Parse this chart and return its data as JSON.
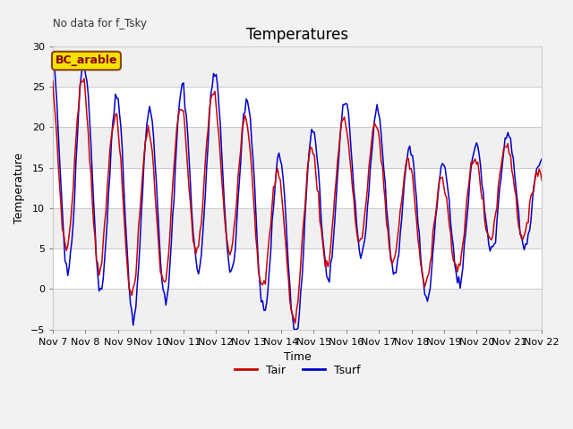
{
  "title": "Temperatures",
  "xlabel": "Time",
  "ylabel": "Temperature",
  "annotation_text": "No data for f_Tsky",
  "box_text": "BC_arable",
  "ylim": [
    -5,
    30
  ],
  "yticks": [
    -5,
    0,
    5,
    10,
    15,
    20,
    25,
    30
  ],
  "xtick_labels": [
    "Nov 7",
    "Nov 8",
    "Nov 9",
    "Nov 10",
    "Nov 11",
    "Nov 12",
    "Nov 13",
    "Nov 14",
    "Nov 15",
    "Nov 16",
    "Nov 17",
    "Nov 18",
    "Nov 19",
    "Nov 20",
    "Nov 21",
    "Nov 22"
  ],
  "legend_labels": [
    "Tair",
    "Tsurf"
  ],
  "legend_colors": [
    "#cc0000",
    "#0000cc"
  ],
  "title_fontsize": 12,
  "label_fontsize": 9,
  "tick_fontsize": 8
}
